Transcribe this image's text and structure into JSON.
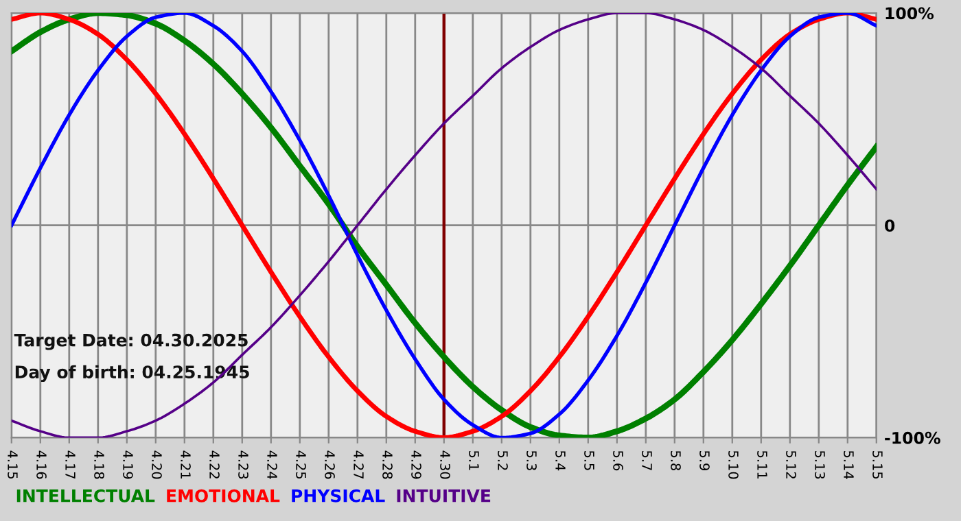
{
  "chart_data": {
    "type": "line",
    "x": [
      "2025-04-15",
      "2025-04-16",
      "2025-04-17",
      "2025-04-18",
      "2025-04-19",
      "2025-04-20",
      "2025-04-21",
      "2025-04-22",
      "2025-04-23",
      "2025-04-24",
      "2025-04-25",
      "2025-04-26",
      "2025-04-27",
      "2025-04-28",
      "2025-04-29",
      "2025-04-30",
      "2025-05-01",
      "2025-05-02",
      "2025-05-03",
      "2025-05-04",
      "2025-05-05",
      "2025-05-06",
      "2025-05-07",
      "2025-05-08",
      "2025-05-09",
      "2025-05-10",
      "2025-05-11",
      "2025-05-12",
      "2025-05-13",
      "2025-05-14",
      "2025-05-15"
    ],
    "series": [
      {
        "name": "INTELLECTUAL",
        "color": "#008000",
        "values": [
          82,
          91,
          97,
          100,
          99,
          95,
          87,
          76,
          62,
          46,
          28,
          10,
          -10,
          -28,
          -46,
          -62,
          -76,
          -87,
          -95,
          -99,
          -100,
          -97,
          -91,
          -82,
          -69,
          -54,
          -37,
          -19,
          0,
          19,
          37
        ]
      },
      {
        "name": "EMOTIONAL",
        "color": "#ff0000",
        "values": [
          97,
          100,
          97,
          90,
          78,
          62,
          43,
          22,
          0,
          -22,
          -43,
          -62,
          -78,
          -90,
          -97,
          -100,
          -97,
          -90,
          -78,
          -62,
          -43,
          -22,
          0,
          22,
          43,
          62,
          78,
          90,
          97,
          100,
          97
        ]
      },
      {
        "name": "PHYSICAL",
        "color": "#0000ff",
        "values": [
          0,
          27,
          52,
          73,
          89,
          98,
          100,
          94,
          82,
          63,
          40,
          14,
          -14,
          -40,
          -63,
          -82,
          -94,
          -100,
          -98,
          -89,
          -73,
          -52,
          -27,
          0,
          27,
          52,
          73,
          89,
          98,
          100,
          94
        ]
      },
      {
        "name": "INTUITIVE",
        "color": "#550088",
        "values": [
          -92,
          -97,
          -100,
          -100,
          -97,
          -92,
          -84,
          -74,
          -61,
          -48,
          -33,
          -17,
          0,
          17,
          33,
          48,
          61,
          74,
          84,
          92,
          97,
          100,
          100,
          97,
          92,
          84,
          74,
          61,
          48,
          33,
          17
        ]
      }
    ],
    "xlim": [
      "2025-04-15",
      "2025-05-15"
    ],
    "xticks": [
      {
        "value": "2025-04-15",
        "label": "4.15"
      },
      {
        "value": "2025-04-16",
        "label": "4.16"
      },
      {
        "value": "2025-04-17",
        "label": "4.17"
      },
      {
        "value": "2025-04-18",
        "label": "4.18"
      },
      {
        "value": "2025-04-19",
        "label": "4.19"
      },
      {
        "value": "2025-04-20",
        "label": "4.20"
      },
      {
        "value": "2025-04-21",
        "label": "4.21"
      },
      {
        "value": "2025-04-22",
        "label": "4.22"
      },
      {
        "value": "2025-04-23",
        "label": "4.23"
      },
      {
        "value": "2025-04-24",
        "label": "4.24"
      },
      {
        "value": "2025-04-25",
        "label": "4.25"
      },
      {
        "value": "2025-04-26",
        "label": "4.26"
      },
      {
        "value": "2025-04-27",
        "label": "4.27"
      },
      {
        "value": "2025-04-28",
        "label": "4.28"
      },
      {
        "value": "2025-04-29",
        "label": "4.29"
      },
      {
        "value": "2025-04-30",
        "label": "4.30"
      },
      {
        "value": "2025-05-01",
        "label": "5.1"
      },
      {
        "value": "2025-05-02",
        "label": "5.2"
      },
      {
        "value": "2025-05-03",
        "label": "5.3"
      },
      {
        "value": "2025-05-04",
        "label": "5.4"
      },
      {
        "value": "2025-05-05",
        "label": "5.5"
      },
      {
        "value": "2025-05-06",
        "label": "5.6"
      },
      {
        "value": "2025-05-07",
        "label": "5.7"
      },
      {
        "value": "2025-05-08",
        "label": "5.8"
      },
      {
        "value": "2025-05-09",
        "label": "5.9"
      },
      {
        "value": "2025-05-10",
        "label": "5.10"
      },
      {
        "value": "2025-05-11",
        "label": "5.11"
      },
      {
        "value": "2025-05-12",
        "label": "5.12"
      },
      {
        "value": "2025-05-13",
        "label": "5.13"
      },
      {
        "value": "2025-05-14",
        "label": "5.14"
      },
      {
        "value": "2025-05-15",
        "label": "5.15"
      }
    ],
    "ylim": [
      -100,
      100
    ],
    "yticks": [
      {
        "value": -100,
        "label": "-100%"
      },
      0,
      {
        "value": 100,
        "label": "100%"
      }
    ],
    "ref_lines": [
      {
        "axis": "x",
        "value": "2025-04-30",
        "color": "#800000"
      }
    ],
    "annotations": [
      "Target Date: 04.30.2025",
      "Day of birth: 04.25.1945"
    ],
    "grid": true,
    "legend": "bottom",
    "marker": "none",
    "line_style": "solid"
  }
}
